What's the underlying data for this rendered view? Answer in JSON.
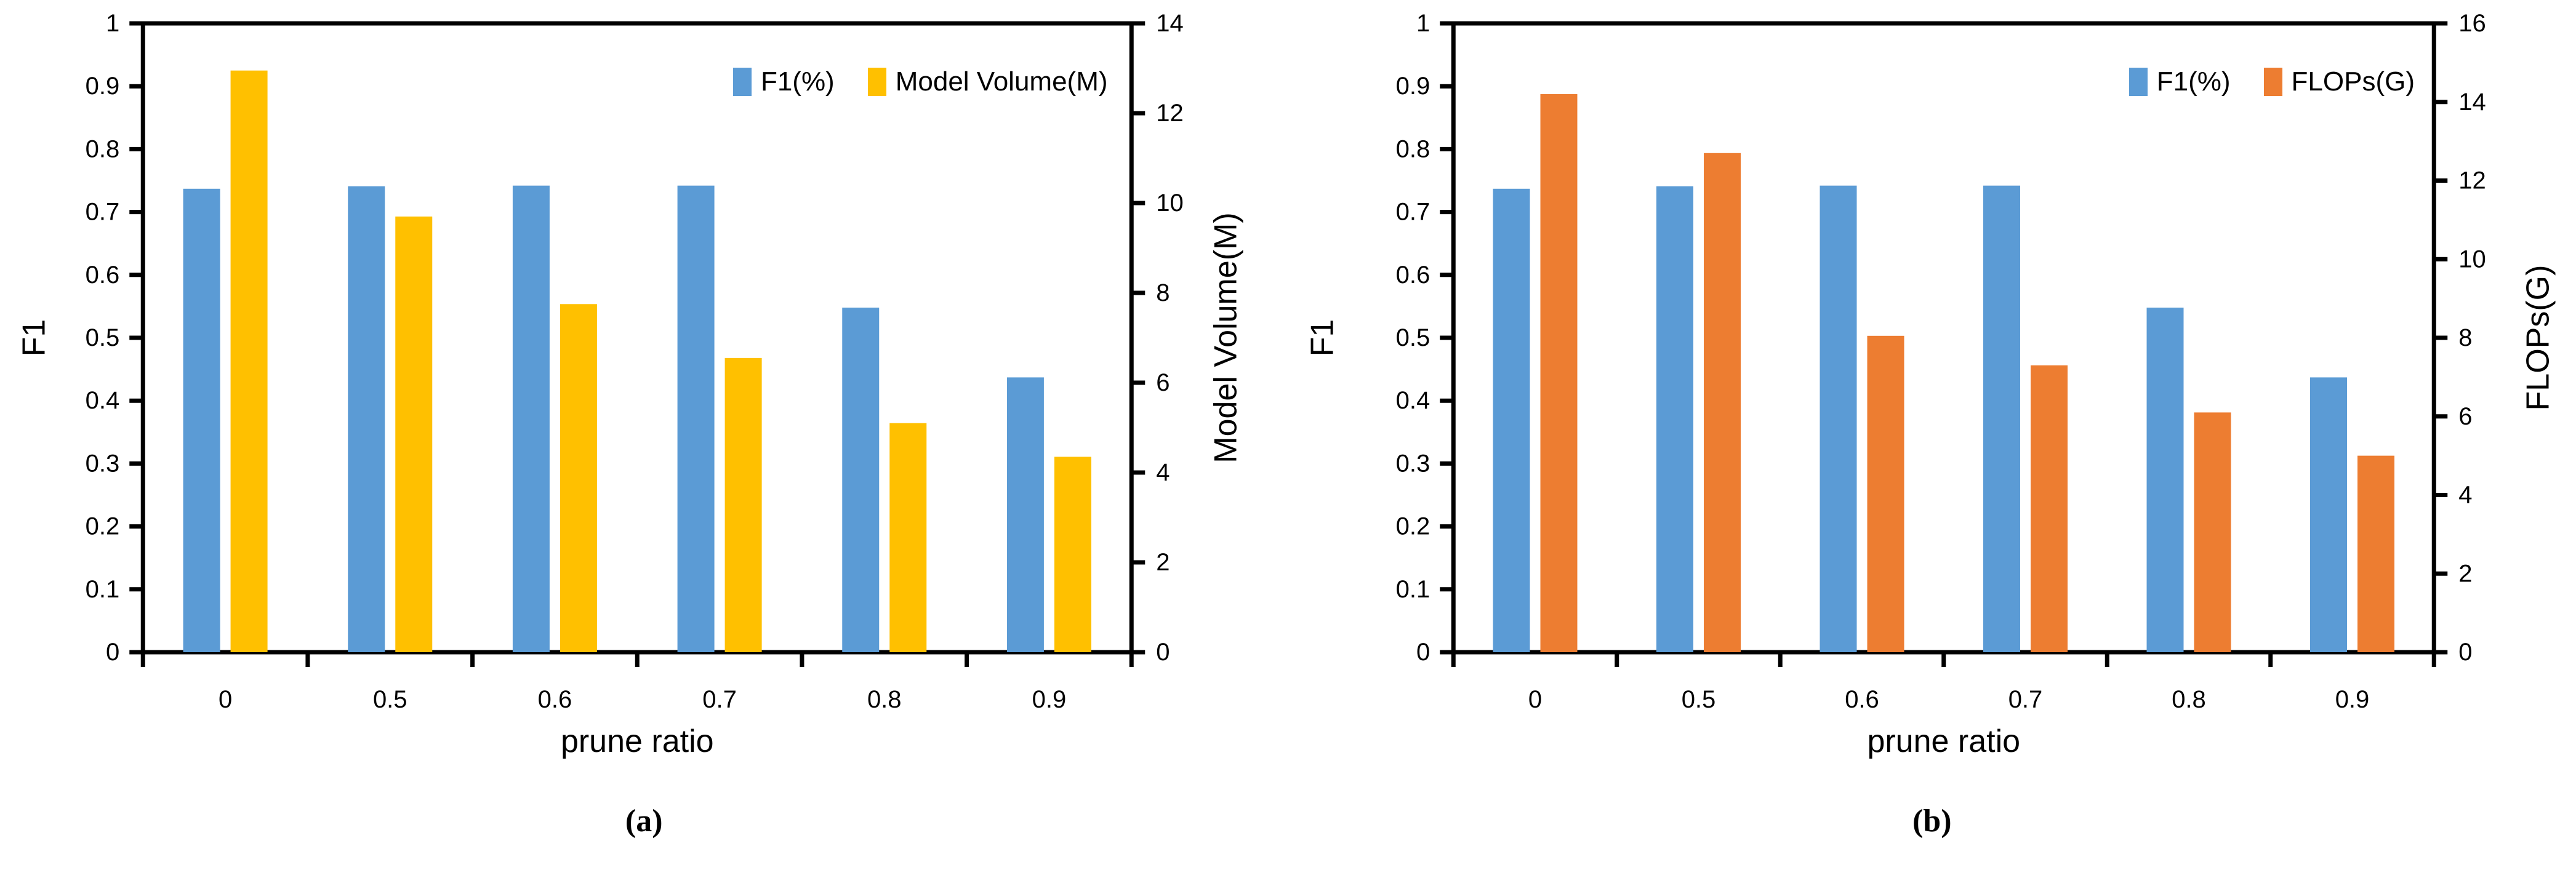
{
  "figure": {
    "background_color": "#ffffff",
    "text_color": "#000000",
    "axis_color": "#000000"
  },
  "chart_data": [
    {
      "type": "bar",
      "panel": "a",
      "caption": "(a)",
      "xlabel": "prune ratio",
      "ylabel_left": "F1",
      "ylabel_right": "Model Volume(M)",
      "categories": [
        "0",
        "0.5",
        "0.6",
        "0.7",
        "0.8",
        "0.9"
      ],
      "axis_left": {
        "min": 0,
        "max": 1,
        "step": 0.1,
        "ticks": [
          "0",
          "0.1",
          "0.2",
          "0.3",
          "0.4",
          "0.5",
          "0.6",
          "0.7",
          "0.8",
          "0.9",
          "1"
        ]
      },
      "axis_right": {
        "min": 0,
        "max": 14,
        "step": 2,
        "ticks": [
          "0",
          "2",
          "4",
          "6",
          "8",
          "10",
          "12",
          "14"
        ]
      },
      "grid": false,
      "legend_position": "top-right-inside",
      "legend": [
        "F1(%)",
        "Model Volume(M)"
      ],
      "series": [
        {
          "name": "F1(%)",
          "axis": "left",
          "color": "#5B9BD5",
          "values": [
            0.737,
            0.741,
            0.742,
            0.742,
            0.548,
            0.437
          ]
        },
        {
          "name": "Model Volume(M)",
          "axis": "right",
          "color": "#FFC000",
          "values": [
            12.95,
            9.7,
            7.75,
            6.55,
            5.1,
            4.35
          ]
        }
      ]
    },
    {
      "type": "bar",
      "panel": "b",
      "caption": "(b)",
      "xlabel": "prune ratio",
      "ylabel_left": "F1",
      "ylabel_right": "FLOPs(G)",
      "categories": [
        "0",
        "0.5",
        "0.6",
        "0.7",
        "0.8",
        "0.9"
      ],
      "axis_left": {
        "min": 0,
        "max": 1,
        "step": 0.1,
        "ticks": [
          "0",
          "0.1",
          "0.2",
          "0.3",
          "0.4",
          "0.5",
          "0.6",
          "0.7",
          "0.8",
          "0.9",
          "1"
        ]
      },
      "axis_right": {
        "min": 0,
        "max": 16,
        "step": 2,
        "ticks": [
          "0",
          "2",
          "4",
          "6",
          "8",
          "10",
          "12",
          "14",
          "16"
        ]
      },
      "grid": false,
      "legend_position": "top-right-inside",
      "legend": [
        "F1(%)",
        "FLOPs(G)"
      ],
      "series": [
        {
          "name": "F1(%)",
          "axis": "left",
          "color": "#5B9BD5",
          "values": [
            0.737,
            0.741,
            0.742,
            0.742,
            0.548,
            0.437
          ]
        },
        {
          "name": "FLOPs(G)",
          "axis": "right",
          "color": "#ED7D31",
          "values": [
            14.2,
            12.7,
            8.05,
            7.3,
            6.1,
            5.0
          ]
        }
      ]
    }
  ]
}
